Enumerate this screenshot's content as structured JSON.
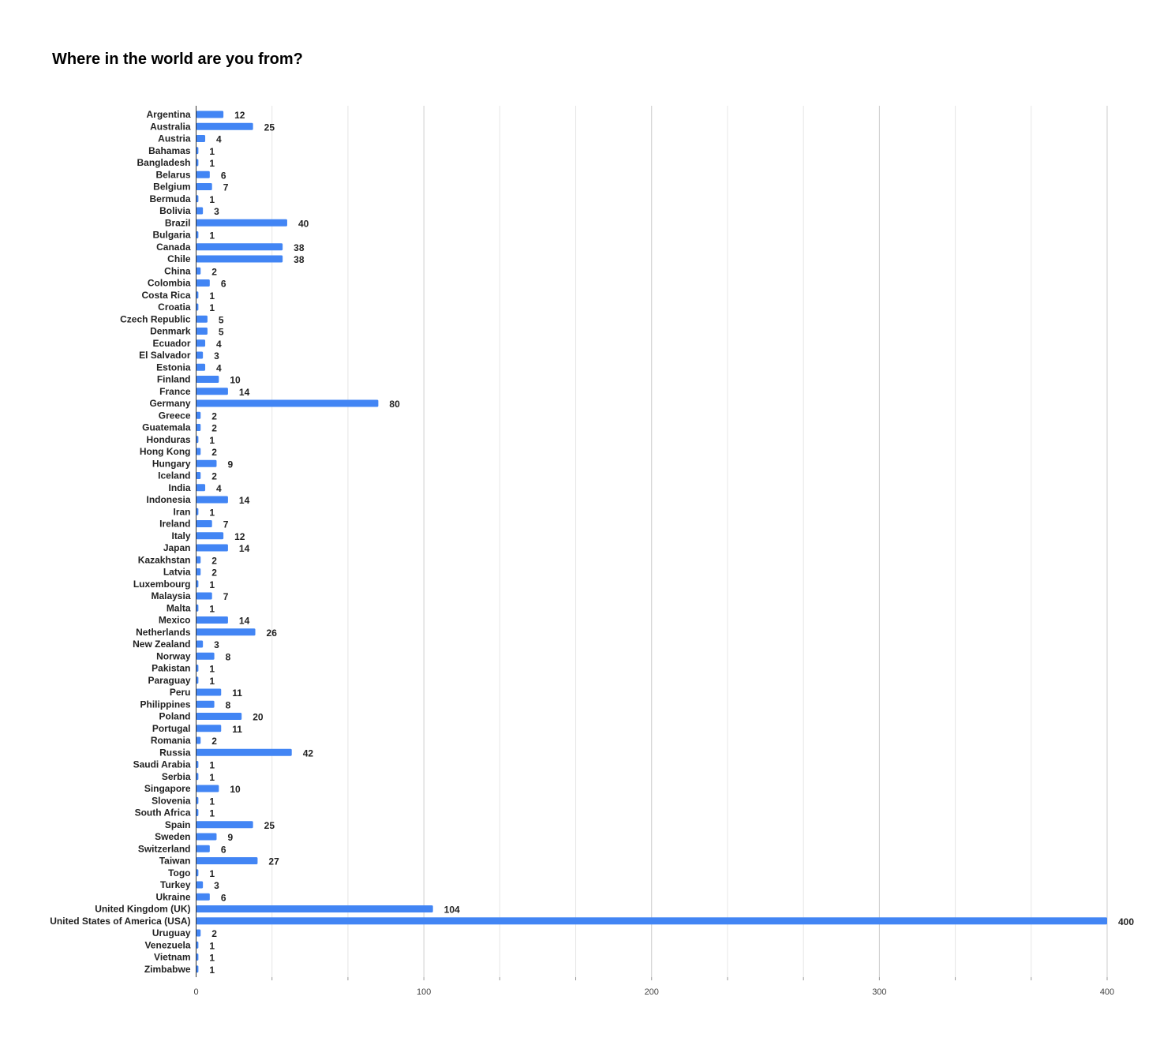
{
  "chart_data": {
    "type": "bar",
    "orientation": "horizontal",
    "title": "Where in the world are you from?",
    "xlabel": "",
    "ylabel": "",
    "xlim": [
      0,
      400
    ],
    "x_ticks": [
      0,
      100,
      200,
      300,
      400
    ],
    "grid": true,
    "legend": "none",
    "bar_color": "#4285f4",
    "categories": [
      "Argentina",
      "Australia",
      "Austria",
      "Bahamas",
      "Bangladesh",
      "Belarus",
      "Belgium",
      "Bermuda",
      "Bolivia",
      "Brazil",
      "Bulgaria",
      "Canada",
      "Chile",
      "China",
      "Colombia",
      "Costa Rica",
      "Croatia",
      "Czech Republic",
      "Denmark",
      "Ecuador",
      "El Salvador",
      "Estonia",
      "Finland",
      "France",
      "Germany",
      "Greece",
      "Guatemala",
      "Honduras",
      "Hong Kong",
      "Hungary",
      "Iceland",
      "India",
      "Indonesia",
      "Iran",
      "Ireland",
      "Italy",
      "Japan",
      "Kazakhstan",
      "Latvia",
      "Luxembourg",
      "Malaysia",
      "Malta",
      "Mexico",
      "Netherlands",
      "New Zealand",
      "Norway",
      "Pakistan",
      "Paraguay",
      "Peru",
      "Philippines",
      "Poland",
      "Portugal",
      "Romania",
      "Russia",
      "Saudi Arabia",
      "Serbia",
      "Singapore",
      "Slovenia",
      "South Africa",
      "Spain",
      "Sweden",
      "Switzerland",
      "Taiwan",
      "Togo",
      "Turkey",
      "Ukraine",
      "United Kingdom (UK)",
      "United States of America (USA)",
      "Uruguay",
      "Venezuela",
      "Vietnam",
      "Zimbabwe"
    ],
    "values": [
      12,
      25,
      4,
      1,
      1,
      6,
      7,
      1,
      3,
      40,
      1,
      38,
      38,
      2,
      6,
      1,
      1,
      5,
      5,
      4,
      3,
      4,
      10,
      14,
      80,
      2,
      2,
      1,
      2,
      9,
      2,
      4,
      14,
      1,
      7,
      12,
      14,
      2,
      2,
      1,
      7,
      1,
      14,
      26,
      3,
      8,
      1,
      1,
      11,
      8,
      20,
      11,
      2,
      42,
      1,
      1,
      10,
      1,
      1,
      25,
      9,
      6,
      27,
      1,
      3,
      6,
      104,
      400,
      2,
      1,
      1,
      1
    ]
  }
}
